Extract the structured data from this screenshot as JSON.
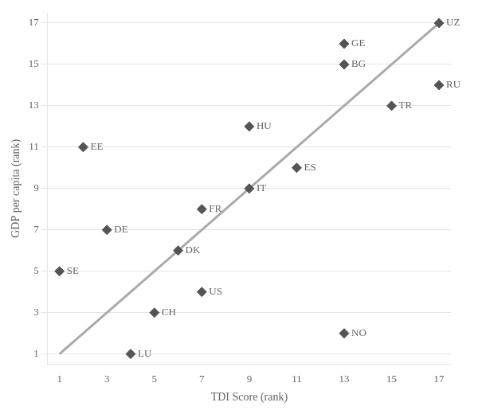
{
  "chart_data": {
    "type": "scatter",
    "x_label": "TDI Score (rank)",
    "y_label": "GDP per capita (rank)",
    "xlim": [
      0.5,
      17.5
    ],
    "ylim": [
      0.5,
      17.5
    ],
    "xticks": [
      1,
      3,
      5,
      7,
      9,
      11,
      13,
      15,
      17
    ],
    "yticks": [
      1,
      3,
      5,
      7,
      9,
      11,
      13,
      15,
      17
    ],
    "grid": "y",
    "series": [
      {
        "type": "line",
        "x": [
          1,
          17
        ],
        "values": [
          1,
          17
        ],
        "color": "#aaaaaa"
      },
      {
        "type": "scatter",
        "marker": "diamond",
        "color": "#555555",
        "x": [
          17,
          13,
          13,
          17,
          15,
          9,
          2,
          11,
          9,
          7,
          3,
          6,
          1,
          7,
          5,
          13,
          4
        ],
        "values": [
          17,
          16,
          15,
          14,
          13,
          12,
          11,
          10,
          9,
          8,
          7,
          6,
          5,
          4,
          3,
          2,
          1
        ],
        "labels": [
          "UZ",
          "GE",
          "BG",
          "RU",
          "TR",
          "HU",
          "EE",
          "ES",
          "IT",
          "FR",
          "DE",
          "DK",
          "SE",
          "US",
          "CH",
          "NO",
          "LU"
        ]
      }
    ]
  }
}
